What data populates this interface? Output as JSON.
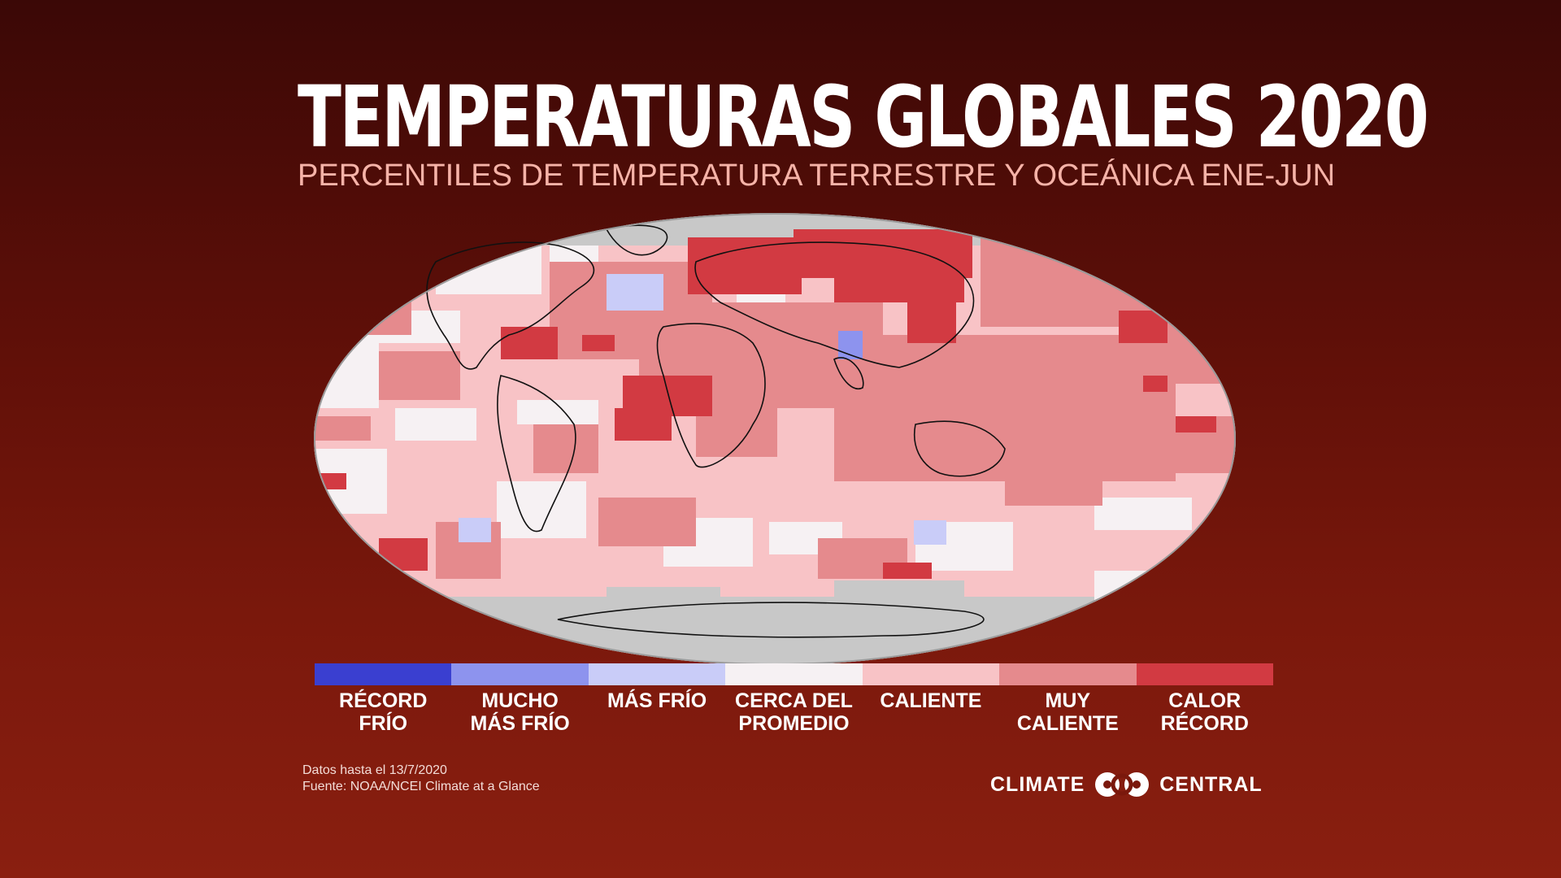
{
  "header": {
    "title": "TEMPERATURAS GLOBALES 2020",
    "subtitle": "PERCENTILES DE TEMPERATURA TERRESTRE Y OCEÁNICA ENE-JUN"
  },
  "legend": {
    "items": [
      {
        "label": "RÉCORD\nFRÍO",
        "color": "#3a3fd0"
      },
      {
        "label": "MUCHO\nMÁS FRÍO",
        "color": "#8d93ee"
      },
      {
        "label": "MÁS FRÍO",
        "color": "#c9ccf8"
      },
      {
        "label": "CERCA DEL\nPROMEDIO",
        "color": "#f6f1f3"
      },
      {
        "label": "CALIENTE",
        "color": "#f8c3c6"
      },
      {
        "label": "MUY\nCALIENTE",
        "color": "#e58a8d"
      },
      {
        "label": "CALOR\nRÉCORD",
        "color": "#d23a42"
      }
    ]
  },
  "footer": {
    "data_date": "Datos hasta el 13/7/2020",
    "source": "Fuente: NOAA/NCEI Climate at a Glance"
  },
  "brand": {
    "left": "CLIMATE",
    "right": "CENTRAL",
    "icon": "climate-central-logo-icon"
  },
  "colors": {
    "no_data": "#c8c8c8",
    "background_top": "#3b0806",
    "background_bottom": "#8a1f10"
  }
}
